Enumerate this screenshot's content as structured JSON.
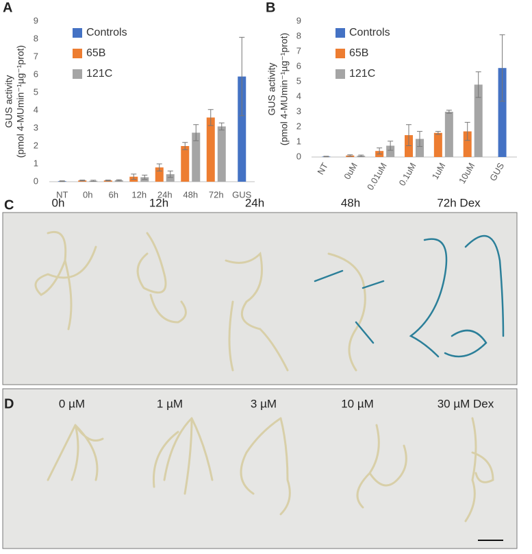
{
  "chart_data": [
    {
      "type": "bar",
      "panel": "A",
      "y_label": [
        "GUS activity",
        "(pmol 4-MUmin⁻¹µg⁻¹prot)"
      ],
      "categories": [
        "NT",
        "0h",
        "6h",
        "12h",
        "24h",
        "48h",
        "72h",
        "GUS"
      ],
      "series": [
        {
          "name": "Controls",
          "color": "#4472c4",
          "values": [
            0.03,
            null,
            null,
            null,
            null,
            null,
            null,
            5.9
          ],
          "errors": [
            0.02,
            null,
            null,
            null,
            null,
            null,
            null,
            2.2
          ]
        },
        {
          "name": "65B",
          "color": "#ed7d31",
          "values": [
            null,
            0.07,
            0.07,
            0.28,
            0.8,
            2.0,
            3.6,
            null
          ],
          "errors": [
            null,
            0.02,
            0.02,
            0.15,
            0.2,
            0.2,
            0.45,
            null
          ]
        },
        {
          "name": "121C",
          "color": "#a5a5a5",
          "values": [
            null,
            0.05,
            0.08,
            0.25,
            0.42,
            2.75,
            3.1,
            null
          ],
          "errors": [
            null,
            0.03,
            0.03,
            0.12,
            0.18,
            0.45,
            0.2,
            null
          ]
        }
      ],
      "ylim": [
        0,
        9
      ],
      "yticks": [
        0,
        1,
        2,
        3,
        4,
        5,
        6,
        7,
        8,
        9
      ],
      "grid": false
    },
    {
      "type": "bar",
      "panel": "B",
      "y_label": [
        "GUS activity",
        "(pmol 4-MUmin⁻¹µg⁻¹prot)"
      ],
      "categories": [
        "NT",
        "0uM",
        "0.01uM",
        "0.1uM",
        "1uM",
        "10uM",
        "GUS"
      ],
      "series": [
        {
          "name": "Controls",
          "color": "#4472c4",
          "values": [
            0.03,
            null,
            null,
            null,
            null,
            null,
            5.9
          ],
          "errors": [
            0.02,
            null,
            null,
            null,
            null,
            null,
            2.2
          ]
        },
        {
          "name": "65B",
          "color": "#ed7d31",
          "values": [
            null,
            0.1,
            0.4,
            1.45,
            1.6,
            1.7,
            null
          ],
          "errors": [
            null,
            0.05,
            0.2,
            0.7,
            0.1,
            0.6,
            null
          ]
        },
        {
          "name": "121C",
          "color": "#a5a5a5",
          "values": [
            null,
            0.08,
            0.75,
            1.2,
            3.0,
            4.8,
            null
          ],
          "errors": [
            null,
            0.05,
            0.3,
            0.5,
            0.1,
            0.85,
            null
          ]
        }
      ],
      "ylim": [
        0,
        9
      ],
      "yticks": [
        0,
        1,
        2,
        3,
        4,
        5,
        6,
        7,
        8,
        9
      ],
      "grid": false
    }
  ],
  "panels": [
    {
      "letter": "C",
      "labels": [
        "0h",
        "12h",
        "24h",
        "48h",
        "72h Dex"
      ]
    },
    {
      "letter": "D",
      "labels": [
        "0 µM",
        "1 µM",
        "3 µM",
        "10 µM",
        "30 µM Dex"
      ]
    }
  ]
}
